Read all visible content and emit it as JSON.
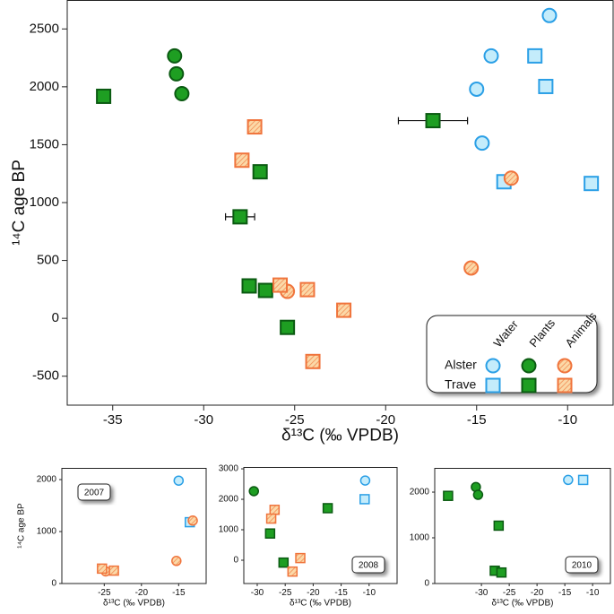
{
  "chart_data": [
    {
      "type": "scatter",
      "xlabel": "δ¹³C (‰ VPDB)",
      "ylabel": "¹⁴C age BP",
      "xlim": [
        -37.5,
        -7.5
      ],
      "ylim": [
        -750,
        2750
      ],
      "xticks": [
        -35,
        -30,
        -25,
        -20,
        -15,
        -10
      ],
      "yticks": [
        -500,
        0,
        500,
        1000,
        1500,
        2000,
        2500
      ],
      "legend": {
        "corner": "lower right",
        "rows": [
          {
            "label": "Alster",
            "marker": "circle"
          },
          {
            "label": "Trave",
            "marker": "square"
          }
        ],
        "columns": [
          {
            "label": "Water",
            "color": "#2a9fe6",
            "fill": "#c4ecfb",
            "hatched": false
          },
          {
            "label": "Plants",
            "color": "#0b5a12",
            "fill": "#1e9e22",
            "hatched": false
          },
          {
            "label": "Animals",
            "color": "#f0743c",
            "fill": "#fbd9a8",
            "hatched": true
          }
        ]
      },
      "series": [
        {
          "row": 0,
          "col": 0,
          "x": [
            -11.0,
            -14.2,
            -15.0,
            -14.7
          ],
          "y": [
            2616,
            2267,
            1980,
            1514
          ]
        },
        {
          "row": 1,
          "col": 0,
          "x": [
            -11.8,
            -11.2,
            -13.5,
            -8.7
          ],
          "y": [
            2267,
            2003,
            1180,
            1165
          ]
        },
        {
          "row": 0,
          "col": 1,
          "x": [
            -31.6,
            -31.5,
            -31.2
          ],
          "y": [
            2267,
            2112,
            1941
          ]
        },
        {
          "row": 1,
          "col": 1,
          "x": [
            -35.5,
            -17.4,
            -26.9,
            -28.0,
            -27.5,
            -26.6,
            -25.4
          ],
          "y": [
            1918,
            1708,
            1266,
            877,
            280,
            241,
            -78
          ],
          "xerr": [
            null,
            1.9,
            null,
            0.8,
            null,
            null,
            null
          ]
        },
        {
          "row": 0,
          "col": 2,
          "x": [
            -13.1,
            -15.3,
            -25.4
          ],
          "y": [
            1211,
            435,
            233
          ]
        },
        {
          "row": 1,
          "col": 2,
          "x": [
            -27.2,
            -27.9,
            -25.8,
            -24.3,
            -22.3,
            -24.0
          ],
          "y": [
            1654,
            1366,
            287,
            248,
            70,
            -373
          ]
        }
      ]
    },
    {
      "type": "scatter",
      "label": "2007",
      "label_corner": "upper left",
      "xlabel": "δ¹³C (‰ VPDB)",
      "ylabel": "¹⁴C age BP",
      "xlim": [
        -30.7,
        -11.3
      ],
      "ylim": [
        0,
        2225
      ],
      "xticks": [
        -25,
        -20,
        -15
      ],
      "yticks": [
        0,
        1000,
        2000
      ],
      "series": [
        {
          "row": 0,
          "col": 0,
          "x": [
            -15.0
          ],
          "y": [
            1980
          ]
        },
        {
          "row": 1,
          "col": 0,
          "x": [
            -13.5
          ],
          "y": [
            1180
          ]
        },
        {
          "row": 0,
          "col": 2,
          "x": [
            -13.1,
            -15.3,
            -24.8
          ],
          "y": [
            1211,
            435,
            233
          ]
        },
        {
          "row": 1,
          "col": 2,
          "x": [
            -25.3,
            -23.7
          ],
          "y": [
            287,
            248
          ]
        }
      ]
    },
    {
      "type": "scatter",
      "label": "2008",
      "label_corner": "lower right",
      "xlabel": "δ¹³C (‰ VPDB)",
      "xlim": [
        -32.4,
        -5
      ],
      "ylim": [
        -765,
        3060
      ],
      "xticks": [
        -30,
        -25,
        -20,
        -15,
        -10
      ],
      "yticks": [
        0,
        1000,
        2000,
        3000
      ],
      "series": [
        {
          "row": 0,
          "col": 0,
          "x": [
            -10.7
          ],
          "y": [
            2616
          ]
        },
        {
          "row": 1,
          "col": 0,
          "x": [
            -10.8
          ],
          "y": [
            2003
          ]
        },
        {
          "row": 0,
          "col": 1,
          "x": [
            -30.6
          ],
          "y": [
            2267
          ]
        },
        {
          "row": 1,
          "col": 1,
          "x": [
            -17.4,
            -27.7,
            -25.3
          ],
          "y": [
            1708,
            877,
            -78
          ]
        },
        {
          "row": 1,
          "col": 2,
          "x": [
            -26.9,
            -27.5,
            -22.3,
            -23.7
          ],
          "y": [
            1654,
            1366,
            70,
            -373
          ]
        }
      ]
    },
    {
      "type": "scatter",
      "label": "2010",
      "label_corner": "lower right",
      "xlabel": "δ¹³C (‰ VPDB)",
      "xlim": [
        -38.4,
        -6.8
      ],
      "ylim": [
        0,
        2530
      ],
      "xticks": [
        -30,
        -25,
        -20,
        -15,
        -10
      ],
      "yticks": [
        0,
        1000,
        2000
      ],
      "series": [
        {
          "row": 0,
          "col": 0,
          "x": [
            -14.4
          ],
          "y": [
            2267
          ]
        },
        {
          "row": 1,
          "col": 0,
          "x": [
            -11.7
          ],
          "y": [
            2267
          ]
        },
        {
          "row": 0,
          "col": 1,
          "x": [
            -31.0,
            -30.6
          ],
          "y": [
            2112,
            1941
          ]
        },
        {
          "row": 1,
          "col": 1,
          "x": [
            -36.0,
            -26.9,
            -27.6,
            -26.4
          ],
          "y": [
            1918,
            1266,
            280,
            241
          ]
        }
      ]
    }
  ]
}
